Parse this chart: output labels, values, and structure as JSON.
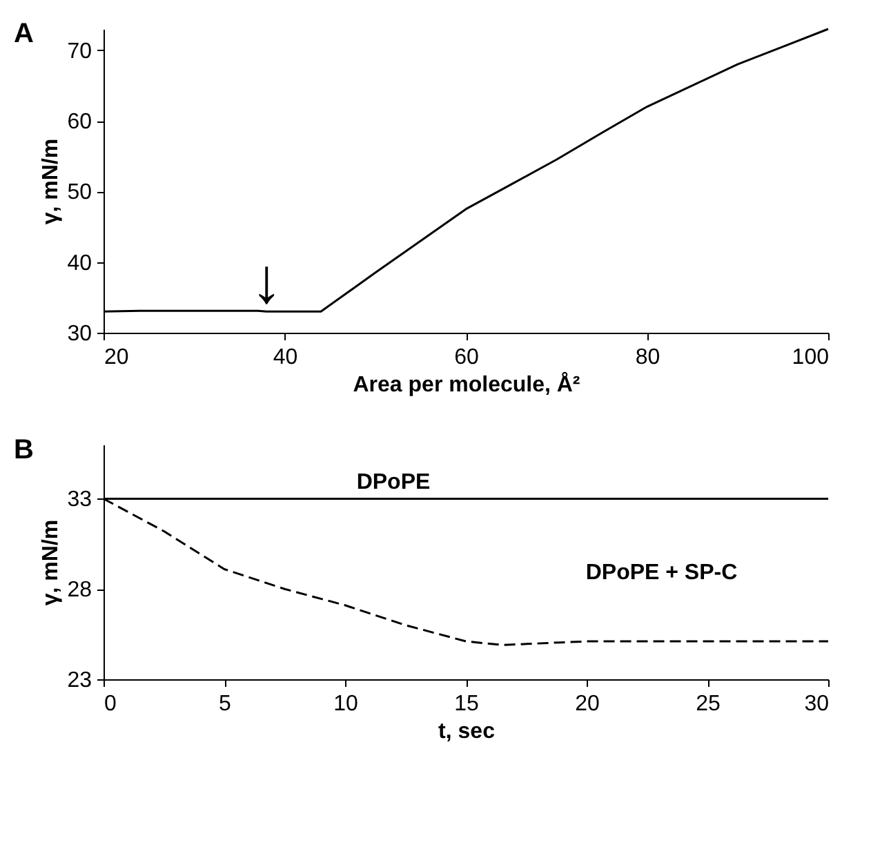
{
  "chart_data": [
    {
      "type": "line",
      "title": "A",
      "xlabel": "Area per molecule, Å²",
      "ylabel": "γ, mN/m",
      "xlim": [
        20,
        100
      ],
      "ylim": [
        30,
        73
      ],
      "xticks": [
        20,
        40,
        60,
        80,
        100
      ],
      "yticks": [
        30,
        40,
        50,
        60,
        70
      ],
      "marker": "none",
      "annotations": [
        {
          "text": "↓",
          "x": 38,
          "y": 33.5
        }
      ],
      "series": [
        {
          "color": "#000000",
          "line_style": "solid",
          "x": [
            20,
            24,
            37,
            38,
            44,
            50,
            55,
            60,
            65,
            70,
            75,
            80,
            85,
            90,
            95,
            100
          ],
          "values": [
            33,
            33.1,
            33.1,
            33,
            33,
            38.5,
            43,
            47.5,
            51,
            54.5,
            58.3,
            62,
            65,
            68,
            70.5,
            73
          ]
        }
      ]
    },
    {
      "type": "line",
      "title": "B",
      "xlabel": "t, sec",
      "ylabel": "γ, mN/m",
      "xlim": [
        0,
        30
      ],
      "ylim": [
        23,
        36
      ],
      "xticks": [
        0,
        5,
        10,
        15,
        20,
        25,
        30
      ],
      "yticks": [
        23,
        28,
        33
      ],
      "marker": "none",
      "series": [
        {
          "name": "DPoPE",
          "color": "#000000",
          "line_style": "solid",
          "x": [
            0,
            30
          ],
          "values": [
            33,
            33
          ]
        },
        {
          "name": "DPoPE + SP-C",
          "color": "#000000",
          "line_style": "dashed",
          "x": [
            0,
            2.5,
            5,
            7.5,
            10,
            12.5,
            15,
            16.5,
            20,
            25,
            30
          ],
          "values": [
            33,
            31.2,
            29.1,
            28,
            27.1,
            26,
            25.1,
            24.9,
            25.1,
            25.1,
            25.1
          ]
        }
      ]
    }
  ]
}
